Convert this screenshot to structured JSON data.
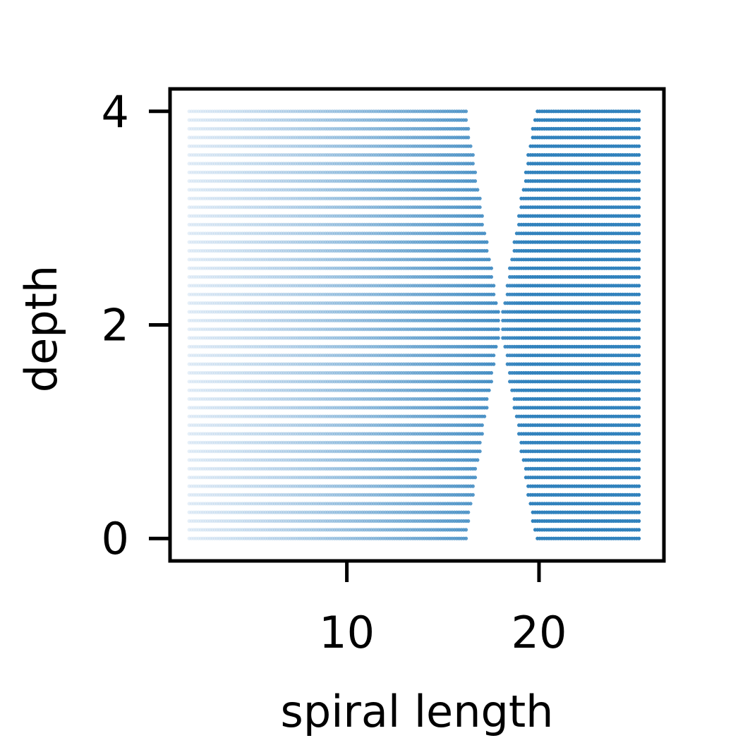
{
  "chart_data": {
    "type": "scatter",
    "xlabel": "spiral length",
    "ylabel": "depth",
    "xlim": [
      0.8,
      26.5
    ],
    "ylim": [
      -0.21,
      4.21
    ],
    "x_ticks": [
      10,
      20
    ],
    "x_tick_labels": [
      "10",
      "20"
    ],
    "y_ticks": [
      0,
      2,
      4
    ],
    "y_tick_labels": [
      "0",
      "2",
      "4"
    ],
    "grid": false,
    "legend": "none",
    "color_scale": {
      "low": "#c6dbef",
      "high": "#3182bd"
    },
    "rows": {
      "count": 50,
      "depth_min": 0,
      "depth_max": 4
    },
    "points_x_range": [
      1.8,
      25.2
    ],
    "gap": {
      "depth_0": [
        16.2,
        19.8
      ],
      "depth_2": [
        18.0,
        18.0
      ],
      "depth_4": [
        16.2,
        19.8
      ]
    }
  }
}
